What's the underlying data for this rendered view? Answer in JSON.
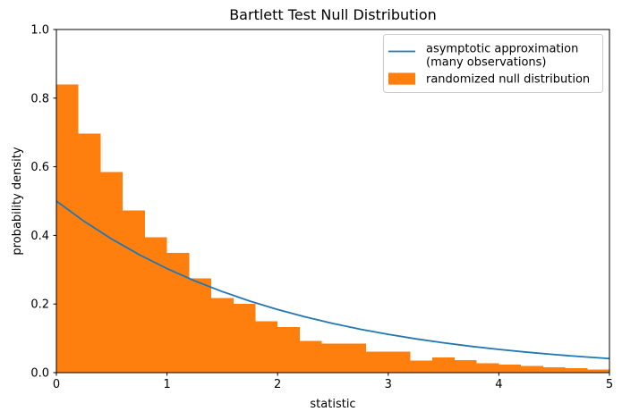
{
  "chart_data": {
    "type": "bar",
    "title": "Bartlett Test Null Distribution",
    "xlabel": "statistic",
    "ylabel": "probability density",
    "xlim": [
      0,
      5
    ],
    "ylim": [
      0,
      1.0
    ],
    "x_ticks": [
      "0",
      "1",
      "2",
      "3",
      "4",
      "5"
    ],
    "y_ticks": [
      "0.0",
      "0.2",
      "0.4",
      "0.6",
      "0.8",
      "1.0"
    ],
    "grid": false,
    "legend_position": "upper right",
    "series": [
      {
        "name": "randomized null distribution",
        "type": "histogram",
        "color": "#ff7f0e",
        "bin_start": 0.0,
        "bin_width": 0.2,
        "densities": [
          0.84,
          0.697,
          0.585,
          0.473,
          0.395,
          0.349,
          0.275,
          0.218,
          0.2,
          0.15,
          0.133,
          0.092,
          0.085,
          0.085,
          0.061,
          0.061,
          0.035,
          0.044,
          0.037,
          0.028,
          0.024,
          0.02,
          0.015,
          0.013,
          0.009
        ]
      },
      {
        "name": "asymptotic approximation (many observations)",
        "type": "line",
        "color": "#1f77b4",
        "x": [
          0.0,
          0.25,
          0.5,
          0.75,
          1.0,
          1.25,
          1.5,
          1.75,
          2.0,
          2.25,
          2.5,
          2.75,
          3.0,
          3.25,
          3.5,
          3.75,
          4.0,
          4.25,
          4.5,
          4.75,
          5.0
        ],
        "y": [
          0.5,
          0.4412,
          0.3894,
          0.3436,
          0.3033,
          0.2676,
          0.2362,
          0.2084,
          0.1839,
          0.1623,
          0.1433,
          0.1264,
          0.1116,
          0.0985,
          0.0869,
          0.0767,
          0.0677,
          0.0597,
          0.0527,
          0.0465,
          0.041
        ]
      }
    ]
  },
  "legend": {
    "line_label_line1": "asymptotic approximation",
    "line_label_line2": "(many observations)",
    "patch_label": "randomized null distribution"
  },
  "colors": {
    "curve": "#1f77b4",
    "bars": "#ff7f0e",
    "spine": "#000000",
    "text": "#000000",
    "legend_border": "#cccccc",
    "background": "#ffffff"
  }
}
